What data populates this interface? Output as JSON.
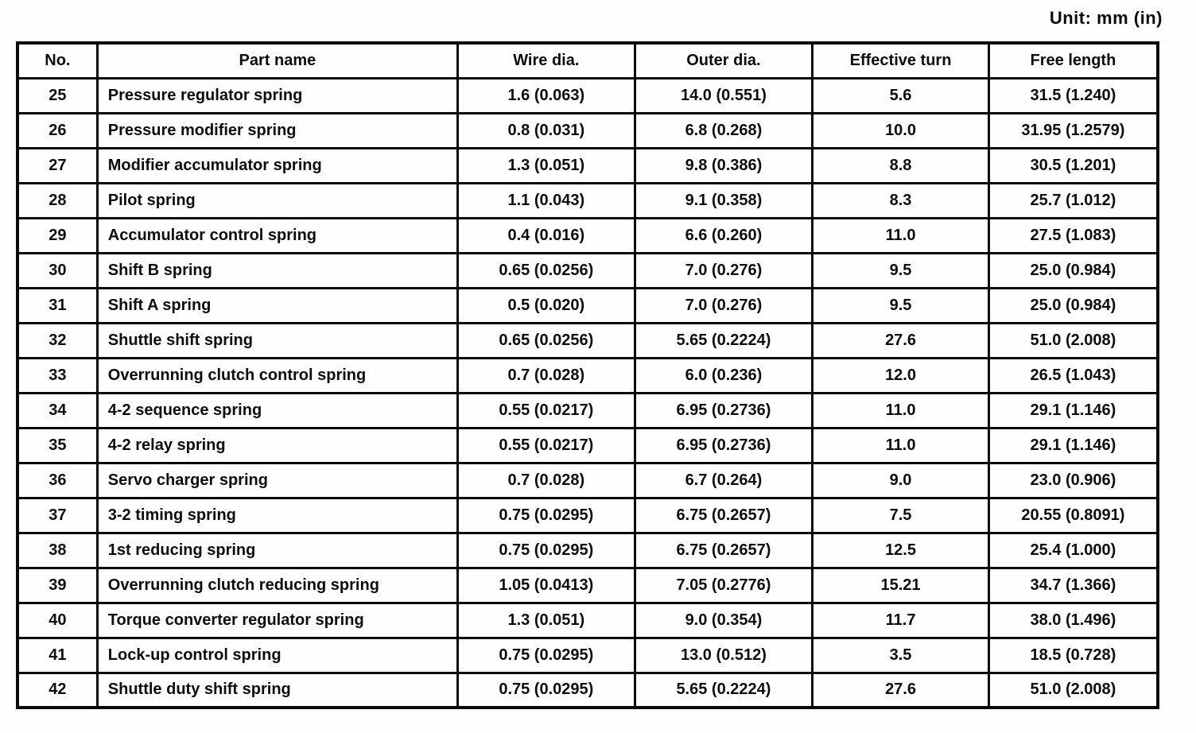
{
  "page": {
    "unit_label": "Unit: mm (in)"
  },
  "table": {
    "columns": [
      "No.",
      "Part name",
      "Wire dia.",
      "Outer dia.",
      "Effective turn",
      "Free length"
    ],
    "rows": [
      {
        "no": "25",
        "part_name": "Pressure regulator spring",
        "wire_dia": "1.6 (0.063)",
        "outer_dia": "14.0 (0.551)",
        "effective_turn": "5.6",
        "free_length": "31.5 (1.240)"
      },
      {
        "no": "26",
        "part_name": "Pressure modifier spring",
        "wire_dia": "0.8 (0.031)",
        "outer_dia": "6.8 (0.268)",
        "effective_turn": "10.0",
        "free_length": "31.95 (1.2579)"
      },
      {
        "no": "27",
        "part_name": "Modifier accumulator spring",
        "wire_dia": "1.3 (0.051)",
        "outer_dia": "9.8 (0.386)",
        "effective_turn": "8.8",
        "free_length": "30.5 (1.201)"
      },
      {
        "no": "28",
        "part_name": "Pilot spring",
        "wire_dia": "1.1 (0.043)",
        "outer_dia": "9.1 (0.358)",
        "effective_turn": "8.3",
        "free_length": "25.7 (1.012)"
      },
      {
        "no": "29",
        "part_name": "Accumulator control spring",
        "wire_dia": "0.4 (0.016)",
        "outer_dia": "6.6 (0.260)",
        "effective_turn": "11.0",
        "free_length": "27.5 (1.083)"
      },
      {
        "no": "30",
        "part_name": "Shift B spring",
        "wire_dia": "0.65 (0.0256)",
        "outer_dia": "7.0 (0.276)",
        "effective_turn": "9.5",
        "free_length": "25.0 (0.984)"
      },
      {
        "no": "31",
        "part_name": "Shift A spring",
        "wire_dia": "0.5 (0.020)",
        "outer_dia": "7.0 (0.276)",
        "effective_turn": "9.5",
        "free_length": "25.0 (0.984)"
      },
      {
        "no": "32",
        "part_name": "Shuttle shift spring",
        "wire_dia": "0.65 (0.0256)",
        "outer_dia": "5.65 (0.2224)",
        "effective_turn": "27.6",
        "free_length": "51.0 (2.008)"
      },
      {
        "no": "33",
        "part_name": "Overrunning clutch control spring",
        "wire_dia": "0.7 (0.028)",
        "outer_dia": "6.0 (0.236)",
        "effective_turn": "12.0",
        "free_length": "26.5 (1.043)"
      },
      {
        "no": "34",
        "part_name": "4-2 sequence spring",
        "wire_dia": "0.55 (0.0217)",
        "outer_dia": "6.95 (0.2736)",
        "effective_turn": "11.0",
        "free_length": "29.1 (1.146)"
      },
      {
        "no": "35",
        "part_name": "4-2 relay spring",
        "wire_dia": "0.55 (0.0217)",
        "outer_dia": "6.95 (0.2736)",
        "effective_turn": "11.0",
        "free_length": "29.1 (1.146)"
      },
      {
        "no": "36",
        "part_name": "Servo charger spring",
        "wire_dia": "0.7 (0.028)",
        "outer_dia": "6.7 (0.264)",
        "effective_turn": "9.0",
        "free_length": "23.0 (0.906)"
      },
      {
        "no": "37",
        "part_name": "3-2 timing spring",
        "wire_dia": "0.75 (0.0295)",
        "outer_dia": "6.75 (0.2657)",
        "effective_turn": "7.5",
        "free_length": "20.55 (0.8091)"
      },
      {
        "no": "38",
        "part_name": "1st reducing spring",
        "wire_dia": "0.75 (0.0295)",
        "outer_dia": "6.75 (0.2657)",
        "effective_turn": "12.5",
        "free_length": "25.4 (1.000)"
      },
      {
        "no": "39",
        "part_name": "Overrunning clutch reducing spring",
        "wire_dia": "1.05 (0.0413)",
        "outer_dia": "7.05 (0.2776)",
        "effective_turn": "15.21",
        "free_length": "34.7 (1.366)"
      },
      {
        "no": "40",
        "part_name": "Torque converter regulator spring",
        "wire_dia": "1.3 (0.051)",
        "outer_dia": "9.0 (0.354)",
        "effective_turn": "11.7",
        "free_length": "38.0 (1.496)"
      },
      {
        "no": "41",
        "part_name": "Lock-up control spring",
        "wire_dia": "0.75 (0.0295)",
        "outer_dia": "13.0 (0.512)",
        "effective_turn": "3.5",
        "free_length": "18.5 (0.728)"
      },
      {
        "no": "42",
        "part_name": "Shuttle duty shift spring",
        "wire_dia": "0.75 (0.0295)",
        "outer_dia": "5.65 (0.2224)",
        "effective_turn": "27.6",
        "free_length": "51.0 (2.008)"
      }
    ]
  }
}
